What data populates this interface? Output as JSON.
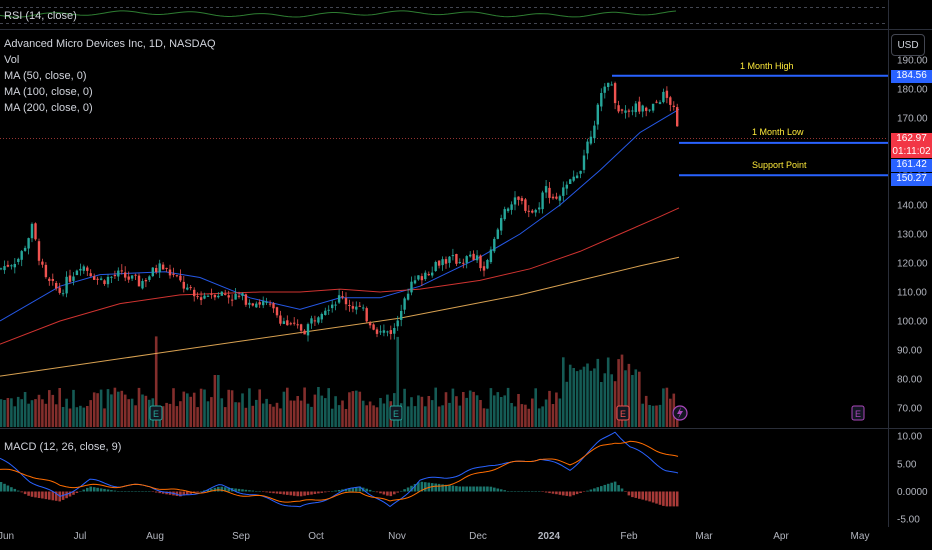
{
  "rsi_label": "RSI (14, close)",
  "symbol_title": "Advanced Micro Devices Inc, 1D, NASDAQ",
  "indicators": [
    "Vol",
    "MA (50, close, 0)",
    "MA (100, close, 0)",
    "MA (200, close, 0)"
  ],
  "currency": "USD",
  "macd_label": "MACD (12, 26, close, 9)",
  "annotations": {
    "month_high": "1 Month High",
    "month_low": "1 Month Low",
    "support": "Support Point"
  },
  "price_tags": {
    "high": "184.56",
    "last": "162.97",
    "countdown": "01:11:02",
    "low": "161.42",
    "support": "150.27"
  },
  "colors": {
    "up": "#26a69a",
    "down": "#ef5350",
    "ma50": "#2962ff",
    "ma100": "#e53935",
    "ma200": "#f0b35a",
    "annotation_line": "#2962ff",
    "annotation_text": "#ffeb3b"
  },
  "chart_data": [
    {
      "type": "candlestick",
      "title": "Advanced Micro Devices Inc, 1D, NASDAQ",
      "x_tick_labels": [
        "Jun",
        "Jul",
        "Aug",
        "Sep",
        "Oct",
        "Nov",
        "Dec",
        "2024",
        "Feb",
        "Mar",
        "Apr",
        "May"
      ],
      "y_tick_labels": [
        "190.00",
        "180.00",
        "170.00",
        "160.00",
        "150.00",
        "140.00",
        "130.00",
        "120.00",
        "110.00",
        "100.00",
        "90.00",
        "80.00",
        "70.00"
      ],
      "ylim": [
        65,
        195
      ],
      "price_path_anchors": [
        [
          0,
          118
        ],
        [
          20,
          122
        ],
        [
          32,
          132
        ],
        [
          45,
          114
        ],
        [
          60,
          110
        ],
        [
          80,
          120
        ],
        [
          100,
          114
        ],
        [
          120,
          116
        ],
        [
          140,
          113
        ],
        [
          160,
          119
        ],
        [
          175,
          115
        ],
        [
          195,
          108
        ],
        [
          215,
          110
        ],
        [
          240,
          108
        ],
        [
          265,
          106
        ],
        [
          290,
          98
        ],
        [
          305,
          97
        ],
        [
          320,
          104
        ],
        [
          340,
          108
        ],
        [
          360,
          104
        ],
        [
          380,
          96
        ],
        [
          395,
          97
        ],
        [
          405,
          110
        ],
        [
          420,
          115
        ],
        [
          440,
          121
        ],
        [
          460,
          121
        ],
        [
          475,
          122
        ],
        [
          485,
          117
        ],
        [
          495,
          128
        ],
        [
          505,
          140
        ],
        [
          520,
          141
        ],
        [
          535,
          137
        ],
        [
          545,
          146
        ],
        [
          555,
          142
        ],
        [
          570,
          147
        ],
        [
          580,
          153
        ],
        [
          595,
          170
        ],
        [
          608,
          184
        ],
        [
          620,
          172
        ],
        [
          635,
          174
        ],
        [
          650,
          172
        ],
        [
          662,
          178
        ],
        [
          672,
          175
        ],
        [
          679,
          163
        ]
      ],
      "moving_averages": [
        {
          "name": "MA (50, close, 0)",
          "points": [
            [
              0,
              100
            ],
            [
              60,
              112
            ],
            [
              100,
              116
            ],
            [
              165,
              117
            ],
            [
              200,
              115
            ],
            [
              250,
              108
            ],
            [
              300,
              104
            ],
            [
              340,
              108
            ],
            [
              380,
              108
            ],
            [
              420,
              112
            ],
            [
              480,
              122
            ],
            [
              520,
              130
            ],
            [
              560,
              140
            ],
            [
              600,
              152
            ],
            [
              640,
              165
            ],
            [
              679,
              173
            ]
          ]
        },
        {
          "name": "MA (100, close, 0)",
          "points": [
            [
              0,
              92
            ],
            [
              60,
              100
            ],
            [
              120,
              106
            ],
            [
              180,
              109
            ],
            [
              260,
              110
            ],
            [
              300,
              110
            ],
            [
              340,
              111
            ],
            [
              380,
              110
            ],
            [
              420,
              111
            ],
            [
              480,
              114
            ],
            [
              530,
              118
            ],
            [
              580,
              124
            ],
            [
              620,
              130
            ],
            [
              660,
              136
            ],
            [
              679,
              139
            ]
          ]
        },
        {
          "name": "MA (200, close, 0)",
          "points": [
            [
              0,
              81
            ],
            [
              80,
              85
            ],
            [
              160,
              89
            ],
            [
              240,
              93
            ],
            [
              320,
              97
            ],
            [
              400,
              101
            ],
            [
              460,
              105
            ],
            [
              520,
              109
            ],
            [
              580,
              114
            ],
            [
              640,
              119
            ],
            [
              679,
              122
            ]
          ]
        }
      ],
      "horizontal_levels": [
        {
          "label": "1 Month High",
          "value": 184.56
        },
        {
          "label": "1 Month Low",
          "value": 161.42
        },
        {
          "label": "Support Point",
          "value": 150.27
        }
      ],
      "current_price": 162.97
    },
    {
      "type": "line",
      "title": "MACD (12, 26, close, 9)",
      "y_tick_labels": [
        "10.00",
        "5.00",
        "0.0000",
        "-5.00"
      ],
      "ylim": [
        -6,
        11
      ],
      "macd_anchors": [
        [
          0,
          6
        ],
        [
          30,
          2
        ],
        [
          60,
          -1
        ],
        [
          90,
          2
        ],
        [
          120,
          1
        ],
        [
          150,
          1
        ],
        [
          180,
          -1
        ],
        [
          220,
          1
        ],
        [
          260,
          -1
        ],
        [
          300,
          -3
        ],
        [
          330,
          -1
        ],
        [
          360,
          1
        ],
        [
          390,
          -3
        ],
        [
          420,
          2
        ],
        [
          460,
          3
        ],
        [
          490,
          5
        ],
        [
          510,
          5
        ],
        [
          540,
          6
        ],
        [
          570,
          4
        ],
        [
          600,
          9
        ],
        [
          615,
          11
        ],
        [
          630,
          8
        ],
        [
          650,
          6
        ],
        [
          665,
          4
        ],
        [
          679,
          3
        ]
      ],
      "signal_anchors": [
        [
          0,
          4
        ],
        [
          30,
          3
        ],
        [
          60,
          1
        ],
        [
          90,
          1
        ],
        [
          120,
          1
        ],
        [
          150,
          1
        ],
        [
          180,
          0
        ],
        [
          220,
          0
        ],
        [
          260,
          -1
        ],
        [
          300,
          -2
        ],
        [
          330,
          -1
        ],
        [
          360,
          0
        ],
        [
          390,
          -2
        ],
        [
          420,
          0
        ],
        [
          460,
          2
        ],
        [
          490,
          4
        ],
        [
          510,
          5
        ],
        [
          540,
          6
        ],
        [
          570,
          5
        ],
        [
          600,
          8
        ],
        [
          615,
          9
        ],
        [
          630,
          9
        ],
        [
          650,
          8
        ],
        [
          665,
          7
        ],
        [
          679,
          6
        ]
      ]
    }
  ]
}
